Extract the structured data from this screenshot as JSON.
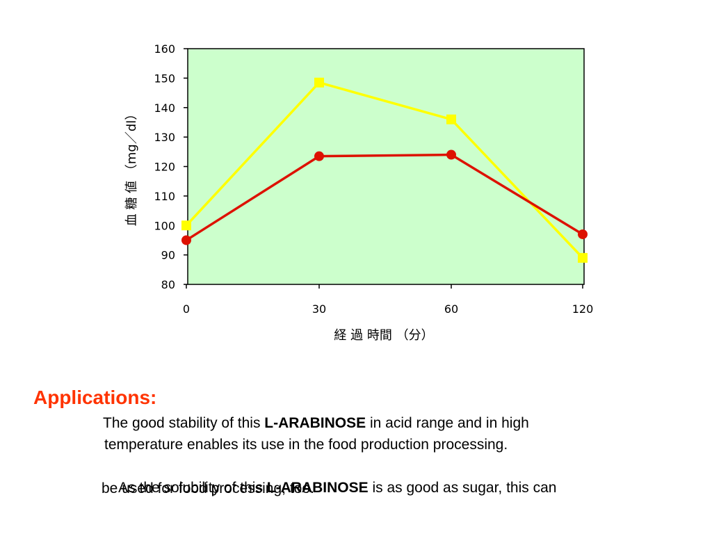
{
  "chart_data": {
    "type": "line",
    "categories": [
      "0",
      "30",
      "60",
      "120"
    ],
    "series": [
      {
        "color": "#ffff00",
        "marker": "square",
        "values": [
          100,
          148.5,
          136,
          89
        ]
      },
      {
        "color": "#dd1100",
        "marker": "circle",
        "values": [
          95,
          123.5,
          124,
          97
        ]
      }
    ],
    "xlabel": "経 過 時間 （分）",
    "ylabel": "血 糖 値 （mg／dl）",
    "ylim": [
      80,
      160
    ],
    "yticks": [
      80,
      90,
      100,
      110,
      120,
      130,
      140,
      150,
      160
    ],
    "plot_background": "#ccffcc",
    "grid": false
  },
  "text": {
    "heading": "Applications:",
    "p1_line1_pre": "The good stability of this ",
    "p1_line1_bold": "L-ARABINOSE",
    "p1_line1_post": " in acid range and in high",
    "p1_line2": "temperature enables its use in the food production processing.",
    "p2_line1_pre": "  As the solubility of this ",
    "p2_line1_bold": "L-ARABINOSE",
    "p2_line1_post": " is as good as sugar, this can",
    "p2_line2": "be used for food processing, too."
  }
}
